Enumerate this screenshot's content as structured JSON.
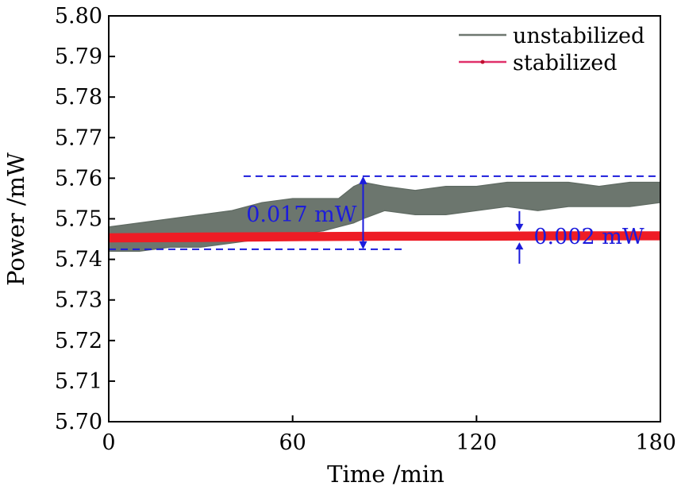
{
  "chart_data": {
    "type": "line",
    "xlabel": "Time /min",
    "ylabel": "Power /mW",
    "xlim": [
      0,
      180
    ],
    "ylim": [
      5.7,
      5.8
    ],
    "xticks": [
      0,
      60,
      120,
      180
    ],
    "yticks": [
      5.7,
      5.71,
      5.72,
      5.73,
      5.74,
      5.75,
      5.76,
      5.77,
      5.78,
      5.79,
      5.8
    ],
    "ytick_labels": [
      "5.70",
      "5.71",
      "5.72",
      "5.73",
      "5.74",
      "5.75",
      "5.76",
      "5.77",
      "5.78",
      "5.79",
      "5.80"
    ],
    "xtick_labels": [
      "0",
      "60",
      "120",
      "180"
    ],
    "legend_position": "top-right",
    "series": [
      {
        "name": "unstabilized",
        "color": "#5f6a62",
        "x": [
          0,
          10,
          20,
          30,
          40,
          50,
          60,
          70,
          75,
          80,
          83,
          90,
          100,
          110,
          120,
          130,
          140,
          150,
          160,
          170,
          180
        ],
        "upper": [
          5.748,
          5.749,
          5.75,
          5.751,
          5.752,
          5.754,
          5.755,
          5.755,
          5.755,
          5.758,
          5.759,
          5.758,
          5.757,
          5.758,
          5.758,
          5.759,
          5.759,
          5.759,
          5.758,
          5.759,
          5.759
        ],
        "lower": [
          5.742,
          5.742,
          5.743,
          5.743,
          5.744,
          5.745,
          5.746,
          5.747,
          5.748,
          5.749,
          5.75,
          5.752,
          5.751,
          5.751,
          5.752,
          5.753,
          5.752,
          5.753,
          5.753,
          5.753,
          5.754
        ]
      },
      {
        "name": "stabilized",
        "color": "#ee1c25",
        "x": [
          0,
          30,
          60,
          90,
          120,
          150,
          180
        ],
        "upper": [
          5.7463,
          5.7465,
          5.7466,
          5.7467,
          5.7467,
          5.7468,
          5.7468
        ],
        "lower": [
          5.7443,
          5.7444,
          5.7446,
          5.7447,
          5.7447,
          5.7448,
          5.7448
        ]
      }
    ],
    "annotations": [
      {
        "id": "range_unstabilized",
        "text": "0.017 mW",
        "x": 83,
        "y_low": 5.7425,
        "y_high": 5.7605,
        "ref_low_x": [
          0,
          97
        ],
        "ref_high_x": [
          44,
          180
        ],
        "color": "#1c1cdc"
      },
      {
        "id": "range_stabilized",
        "text": "0.002 mW",
        "x": 134,
        "y_low": 5.7444,
        "y_high": 5.7468,
        "color": "#1c1cdc"
      }
    ]
  }
}
